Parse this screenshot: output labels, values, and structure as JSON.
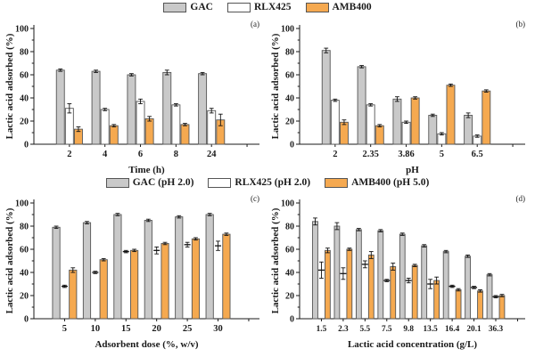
{
  "figure": {
    "background": "#ffffff",
    "axis_color": "#1a1a1a",
    "error_color": "#111111",
    "bar_stroke": "#555555"
  },
  "legends": {
    "top": {
      "items": [
        {
          "label": "GAC",
          "color": "#c9c9c9"
        },
        {
          "label": "RLX425",
          "color": "#ffffff"
        },
        {
          "label": "AMB400",
          "color": "#f5a950"
        }
      ]
    },
    "middle": {
      "items": [
        {
          "label": "GAC (pH 2.0)",
          "color": "#c9c9c9"
        },
        {
          "label": "RLX425 (pH 2.0)",
          "color": "#ffffff"
        },
        {
          "label": "AMB400 (pH 5.0)",
          "color": "#f5a950"
        }
      ]
    }
  },
  "chart_data": [
    {
      "id": "a",
      "type": "bar",
      "panel_label": "(a)",
      "xlabel": "Time (h)",
      "ylabel": "Lactic acid adsorbed (%)",
      "ylim": [
        0,
        100
      ],
      "ytick_step": 20,
      "yminor_step": 10,
      "grid": false,
      "categories": [
        "2",
        "4",
        "6",
        "8",
        "24"
      ],
      "series": [
        {
          "name": "GAC",
          "color": "#c9c9c9",
          "bar_visible": true,
          "values": [
            64,
            63,
            60,
            62,
            61
          ],
          "errors": [
            1,
            1,
            1,
            2,
            1
          ]
        },
        {
          "name": "RLX425",
          "color": "#ffffff",
          "bar_visible": true,
          "values": [
            31,
            30,
            37,
            34,
            29
          ],
          "errors": [
            4,
            1,
            2,
            1,
            2
          ]
        },
        {
          "name": "AMB400",
          "color": "#f5a950",
          "bar_visible": true,
          "values": [
            13,
            16,
            22,
            17,
            21
          ],
          "errors": [
            2,
            1,
            2,
            1,
            5
          ]
        }
      ]
    },
    {
      "id": "b",
      "type": "bar",
      "panel_label": "(b)",
      "xlabel": "pH",
      "ylabel": "Lactic acid adsorbed (%)",
      "ylim": [
        0,
        100
      ],
      "ytick_step": 20,
      "yminor_step": 10,
      "grid": false,
      "categories": [
        "2",
        "2.35",
        "3.86",
        "5",
        "6.5"
      ],
      "series": [
        {
          "name": "GAC",
          "color": "#c9c9c9",
          "bar_visible": true,
          "values": [
            81,
            67,
            39,
            25,
            25
          ],
          "errors": [
            2,
            1,
            2,
            1,
            2
          ]
        },
        {
          "name": "RLX425",
          "color": "#ffffff",
          "bar_visible": true,
          "values": [
            38,
            34,
            19,
            9,
            7
          ],
          "errors": [
            1,
            1,
            1,
            1,
            1
          ]
        },
        {
          "name": "AMB400",
          "color": "#f5a950",
          "bar_visible": true,
          "values": [
            19,
            16,
            40,
            51,
            46
          ],
          "errors": [
            2,
            1,
            1,
            1,
            1
          ]
        }
      ]
    },
    {
      "id": "c",
      "type": "bar",
      "panel_label": "(c)",
      "xlabel": "Adsorbent dose (%, w/v)",
      "ylabel": "Lactic acid adsorbed (%)",
      "ylim": [
        0,
        100
      ],
      "ytick_step": 20,
      "yminor_step": 10,
      "grid": false,
      "categories": [
        "5",
        "10",
        "15",
        "20",
        "25",
        "30"
      ],
      "series": [
        {
          "name": "GAC (pH 2.0)",
          "color": "#c9c9c9",
          "bar_visible": true,
          "values": [
            79,
            83,
            90,
            85,
            88,
            90
          ],
          "errors": [
            1,
            1,
            1,
            1,
            1,
            1
          ]
        },
        {
          "name": "RLX425 (pH 2.0)",
          "color": "#ffffff",
          "bar_visible": false,
          "values": [
            28,
            40,
            58,
            59,
            64,
            63
          ],
          "errors": [
            1,
            1,
            1,
            3,
            2,
            4
          ]
        },
        {
          "name": "AMB400 (pH 5.0)",
          "color": "#f5a950",
          "bar_visible": true,
          "values": [
            42,
            51,
            59,
            65,
            69,
            73
          ],
          "errors": [
            2,
            1,
            1,
            1,
            1,
            1
          ]
        }
      ]
    },
    {
      "id": "d",
      "type": "bar",
      "panel_label": "(d)",
      "xlabel": "Lactic acid concentration (g/L)",
      "ylabel": "Lactic acid adsorbed (%)",
      "ylim": [
        0,
        100
      ],
      "ytick_step": 20,
      "yminor_step": 10,
      "grid": false,
      "categories": [
        "1.5",
        "2.3",
        "5.5",
        "7.5",
        "9.8",
        "13.5",
        "16.4",
        "20.1",
        "36.3"
      ],
      "series": [
        {
          "name": "GAC (pH 2.0)",
          "color": "#c9c9c9",
          "bar_visible": true,
          "values": [
            84,
            80,
            77,
            76,
            73,
            63,
            58,
            54,
            38
          ],
          "errors": [
            3,
            3,
            1,
            1,
            1,
            1,
            1,
            1,
            1
          ]
        },
        {
          "name": "RLX425 (pH 2.0)",
          "color": "#ffffff",
          "bar_visible": false,
          "values": [
            42,
            39,
            47,
            33,
            33,
            30,
            28,
            27,
            19
          ],
          "errors": [
            7,
            5,
            3,
            1,
            2,
            4,
            1,
            1,
            1
          ]
        },
        {
          "name": "AMB400 (pH 5.0)",
          "color": "#f5a950",
          "bar_visible": true,
          "values": [
            59,
            60,
            55,
            45,
            46,
            33,
            25,
            24,
            20
          ],
          "errors": [
            2,
            1,
            3,
            3,
            1,
            3,
            1,
            1,
            1
          ]
        }
      ]
    }
  ]
}
